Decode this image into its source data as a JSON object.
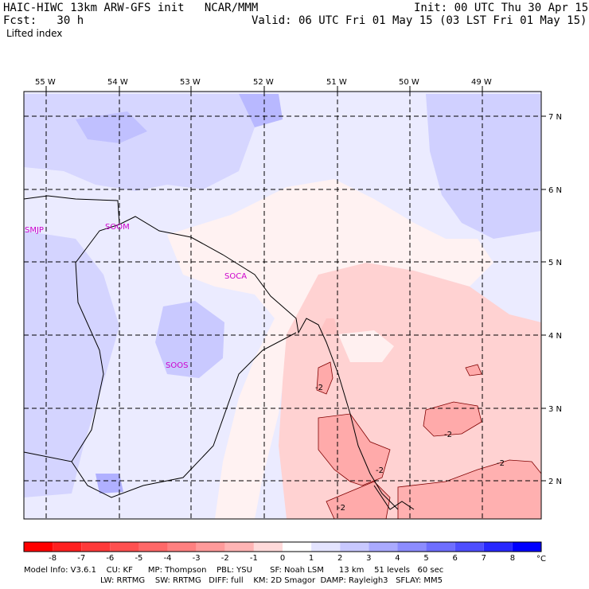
{
  "header": {
    "title_left": "HAIC-HIWC 13km ARW-GFS init   NCAR/MMM",
    "init": "Init: 00 UTC Thu 30 Apr 15",
    "fcst": "Fcst:   30 h",
    "valid": "Valid: 06 UTC Fri 01 May 15 (03 LST Fri 01 May 15)",
    "field": "Lifted index"
  },
  "map": {
    "lon_labels": [
      "55 W",
      "54 W",
      "53 W",
      "52 W",
      "51 W",
      "50 W",
      "49 W"
    ],
    "lat_labels": [
      "7 N",
      "6 N",
      "5 N",
      "4 N",
      "3 N",
      "2 N"
    ],
    "stations": [
      "SMJP",
      "SOOM",
      "SOCA",
      "SOOS"
    ],
    "contour_labels": [
      "-2",
      "-2",
      "-2",
      "-2",
      "-2"
    ]
  },
  "colorbar": {
    "ticks": [
      "-8",
      "-7",
      "-6",
      "-5",
      "-4",
      "-3",
      "-2",
      "-1",
      "0",
      "1",
      "2",
      "3",
      "4",
      "5",
      "6",
      "7",
      "8"
    ],
    "unit": "°C",
    "colors": [
      "#ff0000",
      "#ff2020",
      "#ff3a3a",
      "#ff5050",
      "#ff6868",
      "#ff8080",
      "#ff9a9a",
      "#ffb4b4",
      "#ffdada",
      "#ffffff",
      "#e4e4ff",
      "#c8c8ff",
      "#aaaaff",
      "#8c8cff",
      "#6e6eff",
      "#4e4eff",
      "#2828ff",
      "#0000ff"
    ]
  },
  "footer": {
    "line1": "Model Info: V3.6.1    CU: KF      MP: Thompson    PBL: YSU       SF: Noah LSM      13 km    51 levels   60 sec",
    "line2": "LW: RRTMG    SW: RRTMG   DIFF: full    KM: 2D Smagor  DAMP: Rayleigh3   SFLAY: MM5"
  }
}
